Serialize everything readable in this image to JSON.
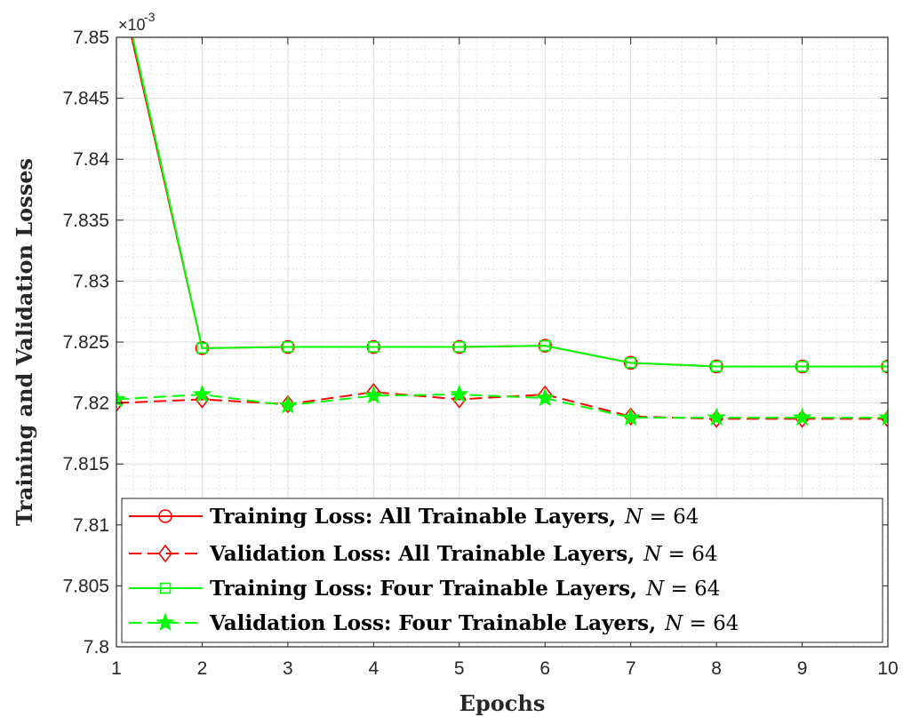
{
  "chart_data": {
    "type": "line",
    "xlabel": "Epochs",
    "ylabel": "Training and Validation Losses",
    "axis_exponent": {
      "base": "×10",
      "power": "-3"
    },
    "x": [
      1,
      2,
      3,
      4,
      5,
      6,
      7,
      8,
      9,
      10
    ],
    "xlim": [
      1,
      10
    ],
    "ylim": [
      7.8,
      7.85
    ],
    "x_ticks": [
      "1",
      "2",
      "3",
      "4",
      "5",
      "6",
      "7",
      "8",
      "9",
      "10"
    ],
    "y_ticks": [
      "7.8",
      "7.805",
      "7.81",
      "7.815",
      "7.82",
      "7.825",
      "7.83",
      "7.835",
      "7.84",
      "7.845",
      "7.85"
    ],
    "grid": true,
    "minor_grid": true,
    "legend_position": "bottom",
    "series": [
      {
        "name": "Training Loss: All Trainable Layers,",
        "name_math": {
          "var": "N",
          "rest": " = 64"
        },
        "color": "#ff0000",
        "line": "solid",
        "marker": "circle",
        "values": [
          7.8555,
          7.8245,
          7.8246,
          7.8246,
          7.8246,
          7.8247,
          7.8233,
          7.823,
          7.823,
          7.823
        ]
      },
      {
        "name": "Validation Loss: All Trainable Layers,",
        "name_math": {
          "var": "N",
          "rest": " = 64"
        },
        "color": "#ff0000",
        "line": "dashed",
        "marker": "diamond",
        "values": [
          7.82,
          7.8203,
          7.8199,
          7.8209,
          7.8203,
          7.8207,
          7.8189,
          7.8187,
          7.8187,
          7.8187
        ]
      },
      {
        "name": "Training Loss: Four Trainable Layers,",
        "name_math": {
          "var": "N",
          "rest": " = 64"
        },
        "color": "#00ff00",
        "line": "solid",
        "marker": "square",
        "values": [
          7.856,
          7.8245,
          7.8246,
          7.8246,
          7.8246,
          7.8247,
          7.8233,
          7.823,
          7.823,
          7.823
        ]
      },
      {
        "name": "Validation Loss: Four Trainable Layers,",
        "name_math": {
          "var": "N",
          "rest": " = 64"
        },
        "color": "#00ff00",
        "line": "dashed",
        "marker": "star",
        "values": [
          7.8203,
          7.8207,
          7.8198,
          7.8206,
          7.8207,
          7.8204,
          7.8188,
          7.8188,
          7.8188,
          7.8188
        ]
      }
    ]
  }
}
